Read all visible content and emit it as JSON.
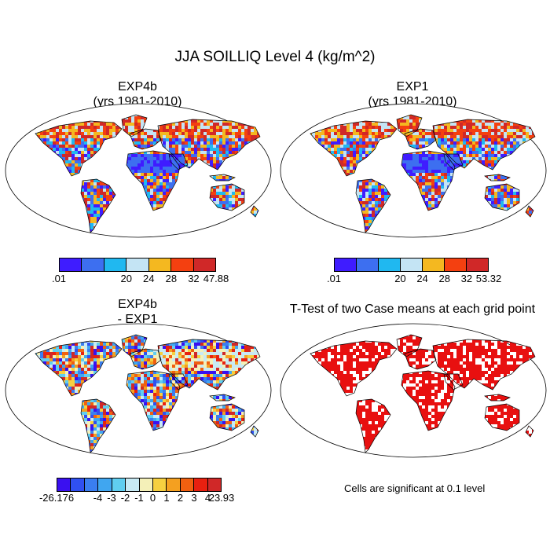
{
  "title": "JJA SOILLIQ Level 4 (kg/m^2)",
  "panels": [
    {
      "title_line1": "EXP4b",
      "title_line2": "(yrs 1981-2010)"
    },
    {
      "title_line1": "EXP1",
      "title_line2": "(yrs 1981-2010)"
    },
    {
      "title_line1": "EXP4b",
      "title_line2": "- EXP1"
    },
    {
      "title_line1": "T-Test of two Case means at each grid point",
      "title_line2": ""
    }
  ],
  "colorbars": [
    {
      "colors": [
        "#3f1cff",
        "#3d6ff0",
        "#20b8f0",
        "#c4e4f4",
        "#f4b820",
        "#f44010",
        "#d02828"
      ],
      "labels": [
        ".01",
        "20",
        "24",
        "28",
        "32",
        "47.88"
      ]
    },
    {
      "colors": [
        "#3f1cff",
        "#3d6ff0",
        "#20b8f0",
        "#c4e4f4",
        "#f4b820",
        "#f44010",
        "#d02828"
      ],
      "labels": [
        ".01",
        "20",
        "24",
        "28",
        "32",
        "53.32"
      ]
    },
    {
      "colors": [
        "#3a10f0",
        "#3050f0",
        "#3a7ef0",
        "#40a6f0",
        "#60cef0",
        "#c8eaf4",
        "#f4f0b8",
        "#f6d040",
        "#f4a020",
        "#f06010",
        "#e82010",
        "#d02828"
      ],
      "labels": [
        "-26.176",
        "-4",
        "-3",
        "-2",
        "-1",
        "0",
        "1",
        "2",
        "3",
        "4",
        "23.93"
      ]
    }
  ],
  "note": "Cells are significant at 0.1 level",
  "palette": {
    "land_wet": "#3f1cff",
    "land_dry": "#d02828",
    "significant": "#e81010",
    "coast": "#000000"
  }
}
